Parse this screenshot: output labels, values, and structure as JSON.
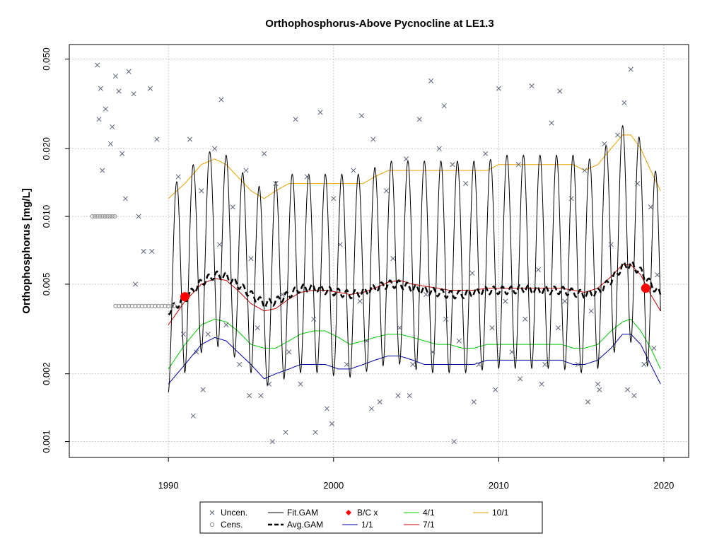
{
  "chart_data": {
    "type": "scatter",
    "title": "Orthophosphorus-Above Pycnocline at LE1.3",
    "xlabel": "",
    "ylabel": "Orthophosphorus [mg/L]",
    "x_scale": "linear",
    "y_scale": "log",
    "xlim": [
      1984,
      2021.5
    ],
    "ylim": [
      0.00085,
      0.058
    ],
    "x_ticks": [
      1990,
      2000,
      2010,
      2020
    ],
    "x_tick_labels": [
      "1990",
      "2000",
      "2010",
      "2020"
    ],
    "y_ticks": [
      0.001,
      0.002,
      0.005,
      0.01,
      0.02,
      0.05
    ],
    "y_tick_labels": [
      "0.001",
      "0.002",
      "0.005",
      "0.010",
      "0.020",
      "0.050"
    ],
    "grid": true,
    "legend_position": "bottom",
    "series": [
      {
        "name": "Uncen.",
        "kind": "points",
        "marker": "x",
        "color": "#5a6478",
        "x": [
          1985.7,
          1985.9,
          1986.0,
          1986.2,
          1986.5,
          1986.8,
          1987.0,
          1987.2,
          1987.6,
          1987.9,
          1988.2,
          1988.5,
          1988.9,
          1989.3,
          1985.8,
          1986.6,
          1987.4,
          1988.0,
          1989.0,
          1990.6,
          1990.9,
          1991.3,
          1991.7,
          1992.0,
          1992.4,
          1992.8,
          1993.1,
          1993.5,
          1993.9,
          1994.3,
          1994.7,
          1995.0,
          1995.4,
          1995.8,
          1996.1,
          1996.5,
          1996.9,
          1997.3,
          1997.7,
          1998.0,
          1998.4,
          1998.8,
          1999.2,
          1999.6,
          2000.0,
          2000.4,
          2000.8,
          2001.2,
          2001.6,
          2002.0,
          2002.4,
          2002.8,
          2003.2,
          2003.6,
          2004.0,
          2004.4,
          2004.8,
          2005.2,
          2005.6,
          2006.0,
          2006.4,
          2006.8,
          2007.2,
          2007.6,
          2008.0,
          2008.4,
          2008.8,
          2009.2,
          2009.6,
          2010.0,
          2010.4,
          2010.8,
          2011.2,
          2011.6,
          2012.0,
          2012.4,
          2012.8,
          2013.2,
          2013.6,
          2014.0,
          2014.4,
          2014.8,
          2015.2,
          2015.6,
          2016.0,
          2016.4,
          2016.8,
          2017.2,
          2017.6,
          2018.0,
          2018.4,
          2018.8,
          2019.2,
          2019.6,
          1991.5,
          1993.2,
          1995.6,
          1997.1,
          1999.9,
          2002.3,
          2004.6,
          2006.7,
          2008.5,
          2011.3,
          2013.7,
          2016.1,
          2018.2,
          1992.1,
          1994.9,
          1996.3,
          1998.9,
          2001.7,
          2003.9,
          2005.9,
          2007.3,
          2009.8,
          2012.6,
          2015.4,
          2017.8,
          2019.4
        ],
        "y": [
          0.047,
          0.037,
          0.016,
          0.03,
          0.021,
          0.042,
          0.036,
          0.019,
          0.044,
          0.035,
          0.01,
          0.007,
          0.037,
          0.022,
          0.027,
          0.025,
          0.012,
          0.005,
          0.007,
          0.015,
          0.003,
          0.022,
          0.0025,
          0.013,
          0.003,
          0.02,
          0.0075,
          0.0033,
          0.011,
          0.0022,
          0.016,
          0.0065,
          0.0032,
          0.019,
          0.0018,
          0.014,
          0.0045,
          0.0025,
          0.027,
          0.0018,
          0.015,
          0.0035,
          0.029,
          0.0014,
          0.012,
          0.0075,
          0.0022,
          0.016,
          0.0042,
          0.0028,
          0.022,
          0.0015,
          0.013,
          0.0065,
          0.0032,
          0.018,
          0.0022,
          0.027,
          0.0045,
          0.0025,
          0.02,
          0.0035,
          0.017,
          0.0028,
          0.014,
          0.0056,
          0.0022,
          0.019,
          0.0032,
          0.037,
          0.0042,
          0.0025,
          0.017,
          0.0035,
          0.038,
          0.0058,
          0.0022,
          0.026,
          0.0032,
          0.0042,
          0.012,
          0.0022,
          0.016,
          0.0038,
          0.0018,
          0.021,
          0.0075,
          0.023,
          0.032,
          0.045,
          0.014,
          0.0022,
          0.011,
          0.0055,
          0.0013,
          0.033,
          0.0016,
          0.0011,
          0.0012,
          0.0014,
          0.0016,
          0.031,
          0.0015,
          0.0019,
          0.036,
          0.0017,
          0.0016,
          0.0017,
          0.0016,
          0.001,
          0.0011,
          0.028,
          0.0016,
          0.04,
          0.001,
          0.0017,
          0.0018,
          0.0015,
          0.0017,
          0.0026
        ]
      },
      {
        "name": "Cens.",
        "kind": "points",
        "marker": "circle",
        "color": "#8c8c8c",
        "x": [
          1985.4,
          1985.55,
          1985.7,
          1985.85,
          1986.0,
          1986.15,
          1986.3,
          1986.45,
          1986.6,
          1986.75,
          1986.8,
          1987.0,
          1987.2,
          1987.4,
          1987.6,
          1987.8,
          1988.0,
          1988.2,
          1988.4,
          1988.6,
          1988.8,
          1989.0,
          1989.2,
          1989.4,
          1989.6,
          1989.8,
          1990.0,
          1990.2,
          1990.35
        ],
        "y": [
          0.01,
          0.01,
          0.01,
          0.01,
          0.01,
          0.01,
          0.01,
          0.01,
          0.01,
          0.01,
          0.004,
          0.004,
          0.004,
          0.004,
          0.004,
          0.004,
          0.004,
          0.004,
          0.004,
          0.004,
          0.004,
          0.004,
          0.004,
          0.004,
          0.004,
          0.004,
          0.004,
          0.004,
          0.004
        ]
      },
      {
        "name": "Fit.GAM",
        "kind": "line",
        "color": "#000000",
        "width": 1,
        "x_start": 1990.0,
        "x_end": 2019.8,
        "peak_month": 0.65,
        "trough_month": 0.05
      },
      {
        "name": "Avg.GAM",
        "kind": "line",
        "color": "#000000",
        "dash": true,
        "width": 2.5,
        "x": [
          1990.0,
          1991.0,
          1992.0,
          1992.8,
          1993.5,
          1994.2,
          1995.0,
          1995.8,
          1996.5,
          1997.3,
          1998.0,
          1998.8,
          1999.5,
          2000.3,
          2001.0,
          2001.8,
          2002.5,
          2003.3,
          2004.0,
          2004.8,
          2005.5,
          2006.3,
          2007.0,
          2007.8,
          2008.5,
          2009.3,
          2010.0,
          2010.8,
          2011.5,
          2012.3,
          2013.0,
          2013.8,
          2014.5,
          2015.2,
          2016.0,
          2016.8,
          2017.5,
          2018.0,
          2018.6,
          2019.2,
          2019.8
        ],
        "y": [
          0.0038,
          0.0043,
          0.0051,
          0.0055,
          0.0054,
          0.005,
          0.0045,
          0.0041,
          0.0042,
          0.0045,
          0.0048,
          0.0048,
          0.0047,
          0.0046,
          0.0045,
          0.0046,
          0.0048,
          0.005,
          0.005,
          0.0048,
          0.0047,
          0.0046,
          0.0045,
          0.0045,
          0.0046,
          0.0047,
          0.0047,
          0.0047,
          0.0048,
          0.0047,
          0.0047,
          0.0047,
          0.0046,
          0.0045,
          0.0046,
          0.0052,
          0.006,
          0.0061,
          0.0057,
          0.005,
          0.0045
        ]
      },
      {
        "name": "1/1",
        "kind": "line",
        "color": "#0000aa",
        "width": 1,
        "x": [
          1990.0,
          1991.0,
          1992.0,
          1992.8,
          1993.5,
          1994.2,
          1995.0,
          1995.8,
          1996.5,
          1997.3,
          1998.0,
          1998.8,
          1999.5,
          2000.3,
          2001.0,
          2001.8,
          2002.5,
          2003.3,
          2004.0,
          2004.8,
          2005.5,
          2006.3,
          2007.0,
          2007.8,
          2008.5,
          2009.3,
          2010.0,
          2010.8,
          2011.5,
          2012.3,
          2013.0,
          2013.8,
          2014.5,
          2015.2,
          2016.0,
          2016.8,
          2017.5,
          2018.0,
          2018.6,
          2019.2,
          2019.8
        ],
        "y": [
          0.0018,
          0.0022,
          0.0027,
          0.0029,
          0.0028,
          0.0025,
          0.0022,
          0.0019,
          0.002,
          0.0021,
          0.0022,
          0.0022,
          0.0022,
          0.0021,
          0.0021,
          0.0022,
          0.0023,
          0.0024,
          0.0024,
          0.0023,
          0.0022,
          0.0022,
          0.0022,
          0.0022,
          0.0022,
          0.0023,
          0.0023,
          0.0023,
          0.0023,
          0.0023,
          0.0023,
          0.0023,
          0.0022,
          0.0022,
          0.0023,
          0.0026,
          0.003,
          0.003,
          0.0027,
          0.0022,
          0.0018
        ]
      },
      {
        "name": "4/1",
        "kind": "line",
        "color": "#00cc00",
        "width": 1,
        "x": [
          1990.0,
          1991.0,
          1992.0,
          1992.8,
          1993.5,
          1994.2,
          1995.0,
          1995.8,
          1996.5,
          1997.3,
          1998.0,
          1998.8,
          1999.5,
          2000.3,
          2001.0,
          2001.8,
          2002.5,
          2003.3,
          2004.0,
          2004.8,
          2005.5,
          2006.3,
          2007.0,
          2007.8,
          2008.5,
          2009.3,
          2010.0,
          2010.8,
          2011.5,
          2012.3,
          2013.0,
          2013.8,
          2014.5,
          2015.2,
          2016.0,
          2016.8,
          2017.5,
          2018.0,
          2018.6,
          2019.2,
          2019.8
        ],
        "y": [
          0.0021,
          0.0027,
          0.0033,
          0.0035,
          0.0034,
          0.0031,
          0.0027,
          0.0026,
          0.0026,
          0.0028,
          0.003,
          0.0031,
          0.0031,
          0.0029,
          0.0027,
          0.0028,
          0.0029,
          0.003,
          0.003,
          0.0029,
          0.0028,
          0.0027,
          0.0027,
          0.0026,
          0.0026,
          0.0027,
          0.0027,
          0.0027,
          0.0027,
          0.0027,
          0.0027,
          0.0027,
          0.0026,
          0.0026,
          0.0027,
          0.0031,
          0.0034,
          0.0035,
          0.0031,
          0.0026,
          0.0021
        ]
      },
      {
        "name": "7/1",
        "kind": "line",
        "color": "#cc0000",
        "width": 1,
        "x": [
          1990.0,
          1991.0,
          1992.0,
          1992.8,
          1993.5,
          1994.2,
          1995.0,
          1995.8,
          1996.5,
          1997.3,
          1998.0,
          1998.8,
          1999.5,
          2000.3,
          2001.0,
          2001.8,
          2002.5,
          2003.3,
          2004.0,
          2004.8,
          2005.5,
          2006.3,
          2007.0,
          2007.8,
          2008.5,
          2009.3,
          2010.0,
          2010.8,
          2011.5,
          2012.3,
          2013.0,
          2013.8,
          2014.5,
          2015.2,
          2016.0,
          2016.8,
          2017.5,
          2018.0,
          2018.6,
          2019.2,
          2019.8
        ],
        "y": [
          0.0033,
          0.0042,
          0.005,
          0.0053,
          0.0052,
          0.0047,
          0.0041,
          0.0038,
          0.0039,
          0.0043,
          0.0046,
          0.0047,
          0.0047,
          0.0046,
          0.0045,
          0.0046,
          0.0048,
          0.0051,
          0.0052,
          0.005,
          0.0049,
          0.0048,
          0.0047,
          0.0047,
          0.0047,
          0.0048,
          0.0048,
          0.0048,
          0.0048,
          0.0048,
          0.0048,
          0.0048,
          0.0047,
          0.0046,
          0.0048,
          0.0054,
          0.0061,
          0.0061,
          0.0055,
          0.0045,
          0.0038
        ]
      },
      {
        "name": "10/1",
        "kind": "line",
        "color": "#e8a000",
        "width": 1,
        "x": [
          1990.0,
          1991.0,
          1992.0,
          1992.8,
          1993.5,
          1994.2,
          1995.0,
          1995.8,
          1996.5,
          1997.3,
          1998.0,
          1998.8,
          1999.5,
          2000.3,
          2001.0,
          2001.8,
          2002.5,
          2003.3,
          2004.0,
          2004.8,
          2005.5,
          2006.3,
          2007.0,
          2007.8,
          2008.5,
          2009.3,
          2010.0,
          2010.8,
          2011.5,
          2012.3,
          2013.0,
          2013.8,
          2014.5,
          2015.2,
          2016.0,
          2016.8,
          2017.5,
          2018.0,
          2018.6,
          2019.2,
          2019.8
        ],
        "y": [
          0.012,
          0.014,
          0.017,
          0.018,
          0.017,
          0.015,
          0.013,
          0.012,
          0.013,
          0.014,
          0.014,
          0.014,
          0.014,
          0.014,
          0.014,
          0.014,
          0.015,
          0.016,
          0.016,
          0.016,
          0.016,
          0.016,
          0.016,
          0.016,
          0.016,
          0.016,
          0.017,
          0.017,
          0.017,
          0.017,
          0.017,
          0.017,
          0.017,
          0.016,
          0.017,
          0.02,
          0.023,
          0.023,
          0.02,
          0.016,
          0.013
        ]
      },
      {
        "name": "B/C x",
        "kind": "points",
        "marker": "filled-circle",
        "color": "#ff0000",
        "x": [
          1991.0,
          2018.9
        ],
        "y": [
          0.0044,
          0.0048
        ]
      }
    ]
  },
  "legend": {
    "items": [
      {
        "label": "Uncen.",
        "symbol": "x",
        "color": "#5a6478"
      },
      {
        "label": "Cens.",
        "symbol": "circle",
        "color": "#8c8c8c"
      },
      {
        "label": "Fit.GAM",
        "symbol": "line",
        "color": "#000000"
      },
      {
        "label": "Avg.GAM",
        "symbol": "dash",
        "color": "#000000"
      },
      {
        "label": "B/C x",
        "symbol": "diamond",
        "color": "#ff0000"
      },
      {
        "label": "1/1",
        "symbol": "line",
        "color": "#0000aa"
      },
      {
        "label": "4/1",
        "symbol": "line",
        "color": "#00cc00"
      },
      {
        "label": "7/1",
        "symbol": "line",
        "color": "#cc0000"
      },
      {
        "label": "10/1",
        "symbol": "line",
        "color": "#e8a000"
      }
    ]
  }
}
